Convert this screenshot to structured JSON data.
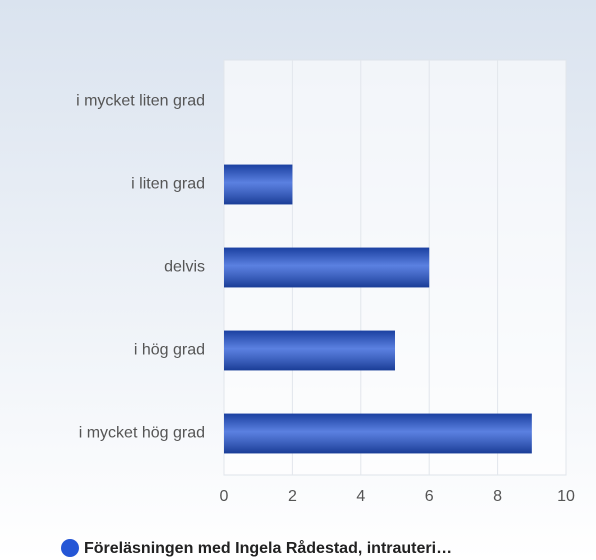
{
  "chart_data": {
    "type": "bar",
    "orientation": "horizontal",
    "categories": [
      "i mycket liten grad",
      "i liten grad",
      "delvis",
      "i hög grad",
      "i mycket hög grad"
    ],
    "series": [
      {
        "name": "Föreläsningen med Ingela Rådestad, intrauteri…",
        "color": "#2456d6",
        "values": [
          0,
          2,
          6,
          5,
          9
        ]
      }
    ],
    "xlim": [
      0,
      10
    ],
    "xticks": [
      0,
      2,
      4,
      6,
      8,
      10
    ],
    "grid": true
  }
}
